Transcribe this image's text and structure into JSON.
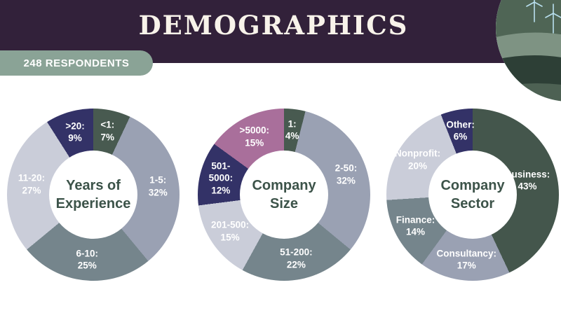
{
  "header": {
    "title": "DEMOGRAPHICS",
    "badge": "248 RESPONDENTS",
    "colors": {
      "header_bg": "#32213a",
      "badge_bg": "#8aa396",
      "title_color": "#f8f3ea"
    }
  },
  "illustration": {
    "name": "landscape-with-wind-turbines"
  },
  "chart_data": [
    {
      "type": "pie",
      "style": "donut",
      "title": "Years of\nExperience",
      "legend_position": "inside",
      "series": [
        {
          "name": "<1",
          "value": 7,
          "label": "<1:\n7%",
          "color": "#485a50"
        },
        {
          "name": "1-5",
          "value": 32,
          "label": "1-5:\n32%",
          "color": "#9aa1b3"
        },
        {
          "name": "6-10",
          "value": 25,
          "label": "6-10:\n25%",
          "color": "#75858c"
        },
        {
          "name": "11-20",
          "value": 27,
          "label": "11-20:\n27%",
          "color": "#cacdd9"
        },
        {
          "name": ">20",
          "value": 9,
          "label": ">20:\n9%",
          "color": "#333267"
        }
      ]
    },
    {
      "type": "pie",
      "style": "donut",
      "title": "Company\nSize",
      "legend_position": "inside",
      "series": [
        {
          "name": "1",
          "value": 4,
          "label": "1:\n4%",
          "color": "#485a50"
        },
        {
          "name": "2-50",
          "value": 32,
          "label": "2-50:\n32%",
          "color": "#9aa1b3"
        },
        {
          "name": "51-200",
          "value": 22,
          "label": "51-200:\n22%",
          "color": "#75858c"
        },
        {
          "name": "201-500",
          "value": 15,
          "label": "201-500:\n15%",
          "color": "#cacdd9"
        },
        {
          "name": "501-5000",
          "value": 12,
          "label": "501-\n5000:\n12%",
          "color": "#333267"
        },
        {
          "name": ">5000",
          "value": 15,
          "label": ">5000:\n15%",
          "color": "#a96f9b"
        }
      ]
    },
    {
      "type": "pie",
      "style": "donut",
      "title": "Company\nSector",
      "legend_position": "inside",
      "series": [
        {
          "name": "Business",
          "value": 43,
          "label": "Business:\n43%",
          "color": "#44564c"
        },
        {
          "name": "Consultancy",
          "value": 17,
          "label": "Consultancy:\n17%",
          "color": "#9aa1b3"
        },
        {
          "name": "Finance",
          "value": 14,
          "label": "Finance:\n14%",
          "color": "#75858c"
        },
        {
          "name": "Nonprofit",
          "value": 20,
          "label": "Nonprofit:\n20%",
          "color": "#cacdd9"
        },
        {
          "name": "Other",
          "value": 6,
          "label": "Other:\n6%",
          "color": "#333267"
        }
      ]
    }
  ]
}
